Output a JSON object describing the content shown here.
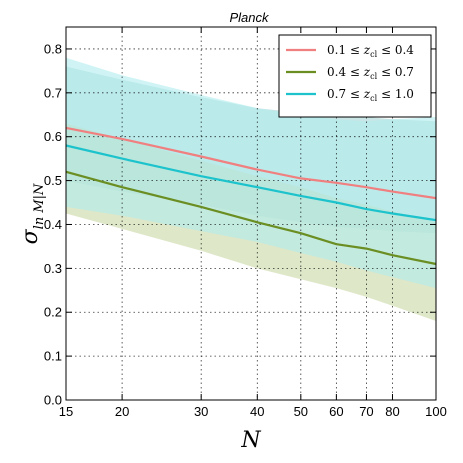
{
  "chart_data": {
    "type": "line",
    "title": "Planck",
    "xlabel": "N",
    "ylabel": "σ ln M|N",
    "ylabel_main": "σ",
    "ylabel_sub": "ln M|N",
    "xscale": "log",
    "xlim": [
      15,
      100
    ],
    "ylim": [
      0.0,
      0.85
    ],
    "grid": true,
    "legend_position": "top-right",
    "x_ticks": [
      15,
      20,
      30,
      40,
      50,
      60,
      70,
      80,
      100
    ],
    "y_ticks": [
      0.0,
      0.1,
      0.2,
      0.3,
      0.4,
      0.5,
      0.6,
      0.7,
      0.8
    ],
    "x_tick_labels": [
      "15",
      "20",
      "30",
      "40",
      "50",
      "60",
      "70",
      "80",
      "100"
    ],
    "y_tick_labels": [
      "0.0",
      "0.1",
      "0.2",
      "0.3",
      "0.4",
      "0.5",
      "0.6",
      "0.7",
      "0.8"
    ],
    "series": [
      {
        "name": "0.1 ≤ z_cl ≤ 0.4",
        "legend_label": {
          "pre": "0.1 ≤ ",
          "var": "z",
          "sub": "cl",
          "post": " ≤ 0.4"
        },
        "color": "#f08080",
        "band_color": "#a7d3d3",
        "x": [
          15,
          20,
          30,
          40,
          50,
          60,
          70,
          80,
          100
        ],
        "y": [
          0.62,
          0.595,
          0.555,
          0.525,
          0.505,
          0.495,
          0.485,
          0.475,
          0.46
        ],
        "upper": [
          0.76,
          0.73,
          0.69,
          0.665,
          0.655,
          0.65,
          0.645,
          0.64,
          0.635
        ],
        "lower": [
          0.5,
          0.475,
          0.445,
          0.42,
          0.405,
          0.395,
          0.39,
          0.385,
          0.38
        ]
      },
      {
        "name": "0.4 ≤ z_cl ≤ 0.7",
        "legend_label": {
          "pre": "0.4 ≤ ",
          "var": "z",
          "sub": "cl",
          "post": " ≤ 0.7"
        },
        "color": "#6b8e23",
        "band_color": "#c8d7a4",
        "x": [
          15,
          20,
          30,
          40,
          50,
          60,
          70,
          80,
          100
        ],
        "y": [
          0.52,
          0.485,
          0.44,
          0.405,
          0.38,
          0.355,
          0.345,
          0.33,
          0.31
        ],
        "upper": [
          0.63,
          0.595,
          0.545,
          0.51,
          0.485,
          0.46,
          0.445,
          0.43,
          0.405
        ],
        "lower": [
          0.425,
          0.39,
          0.34,
          0.3,
          0.275,
          0.255,
          0.235,
          0.215,
          0.18
        ]
      },
      {
        "name": "0.7 ≤ z_cl ≤ 1.0",
        "legend_label": {
          "pre": "0.7 ≤ ",
          "var": "z",
          "sub": "cl",
          "post": " ≤ 1.0"
        },
        "color": "#1cc3cc",
        "band_color": "#b0ecee",
        "x": [
          15,
          20,
          30,
          40,
          50,
          60,
          70,
          80,
          100
        ],
        "y": [
          0.58,
          0.55,
          0.51,
          0.485,
          0.465,
          0.45,
          0.435,
          0.425,
          0.41
        ],
        "upper": [
          0.78,
          0.74,
          0.695,
          0.665,
          0.65,
          0.64,
          0.635,
          0.64,
          0.645
        ],
        "lower": [
          0.44,
          0.42,
          0.385,
          0.36,
          0.335,
          0.315,
          0.295,
          0.28,
          0.255
        ]
      }
    ]
  }
}
